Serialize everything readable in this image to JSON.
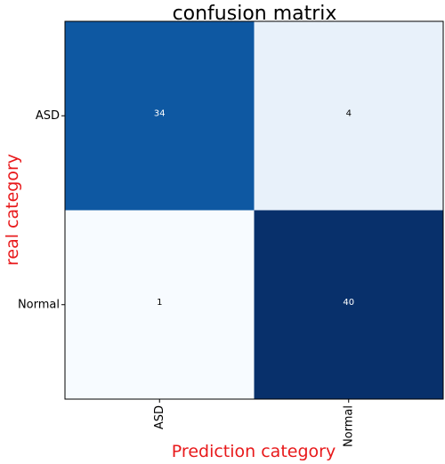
{
  "chart_data": {
    "type": "heatmap",
    "title": "confusion matrix",
    "xlabel": "Prediction category",
    "ylabel": "real category",
    "x_categories": [
      "ASD",
      "Normal"
    ],
    "y_categories": [
      "ASD",
      "Normal"
    ],
    "values": [
      [
        34,
        4
      ],
      [
        1,
        40
      ]
    ],
    "colormap": "Blues",
    "value_range": [
      1,
      40
    ],
    "grid": false
  },
  "colors": {
    "label_color": "#e8191b",
    "axis_color": "#000000",
    "text_on_dark": "#ffffff",
    "text_on_light": "#000000"
  }
}
